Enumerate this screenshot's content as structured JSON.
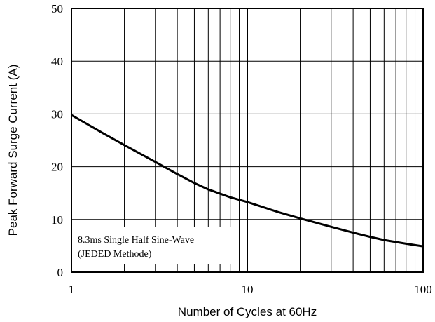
{
  "chart_data": {
    "type": "line",
    "title": "",
    "xlabel": "Number of Cycles at 60Hz",
    "ylabel": "Peak Forward Surge Current (A)",
    "xscale": "log",
    "xlim": [
      1,
      100
    ],
    "ylim": [
      0,
      50
    ],
    "grid": true,
    "x_ticks": [
      "1",
      "10",
      "100"
    ],
    "y_ticks": [
      "0",
      "10",
      "20",
      "30",
      "40",
      "50"
    ],
    "annotation": [
      "8.3ms Single Half Sine-Wave",
      "(JEDED Methode)"
    ],
    "series": [
      {
        "x": [
          1,
          1.5,
          2,
          3,
          4,
          5,
          6,
          8,
          10,
          15,
          20,
          30,
          40,
          50,
          60,
          80,
          100
        ],
        "y": [
          29.8,
          26.4,
          24.1,
          20.9,
          18.6,
          16.9,
          15.7,
          14.2,
          13.3,
          11.4,
          10.2,
          8.6,
          7.5,
          6.7,
          6.1,
          5.4,
          4.9
        ]
      }
    ],
    "colors": {
      "line": "#000000",
      "grid": "#000000",
      "background": "#ffffff"
    }
  }
}
